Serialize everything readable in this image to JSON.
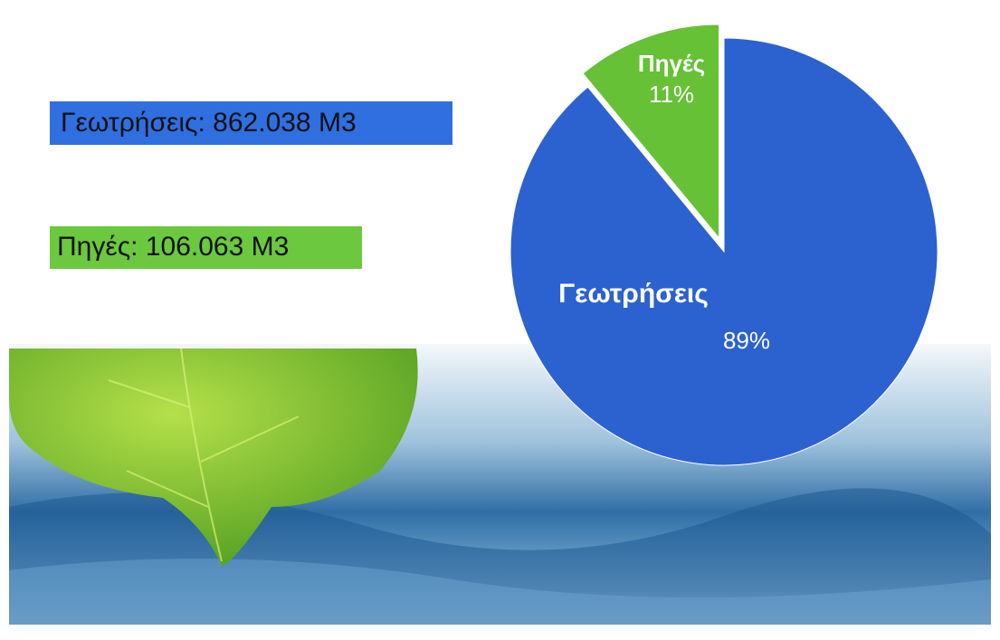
{
  "chart_data": {
    "type": "pie",
    "categories": [
      "Γεωτρήσεις",
      "Πηγές"
    ],
    "values": [
      89,
      11
    ],
    "value_labels": [
      "89%",
      "11%"
    ],
    "colors": [
      "#2c62cf",
      "#66c136"
    ],
    "annotations": [
      "Γεωτρήσεις: 862.038 M3",
      "Πηγές: 106.063 M3"
    ]
  }
}
